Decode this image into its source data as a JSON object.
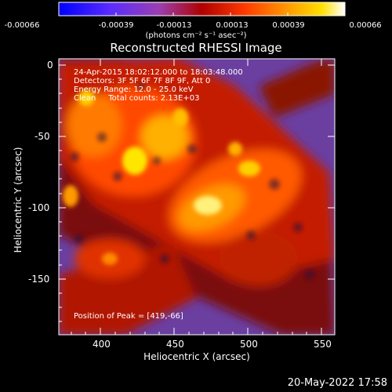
{
  "colorbar": {
    "ticks": [
      "-0.00066",
      "-0.00039",
      "-0.00013",
      "0.00013",
      "0.00039",
      "0.00066"
    ],
    "units_label": "(photons cm⁻² s⁻¹ asec⁻²)",
    "colors": [
      "#1010ff",
      "#6a2cff",
      "#a050a0",
      "#c00000",
      "#ff3000",
      "#ff9000",
      "#ffd000",
      "#ffff90",
      "#ffffff"
    ]
  },
  "title": "Reconstructed RHESSI Image",
  "info": {
    "line1": "24-Apr-2015 18:02:12.000 to 18:03:48.000",
    "line2": "Detectors: 3F 5F 6F 7F 8F 9F, Att 0",
    "line3": "Energy Range: 12.0 - 25.0 keV",
    "line4": "Clean     Total counts: 2.13E+03",
    "peak": "Position of Peak = [419,-66]"
  },
  "axes": {
    "xlabel": "Heliocentric X (arcsec)",
    "ylabel": "Heliocentric Y (arcsec)",
    "xticks": [
      "400",
      "450",
      "500",
      "550"
    ],
    "yticks": [
      "0",
      "-50",
      "-100",
      "-150"
    ]
  },
  "timestamp": "20-May-2022 17:58"
}
